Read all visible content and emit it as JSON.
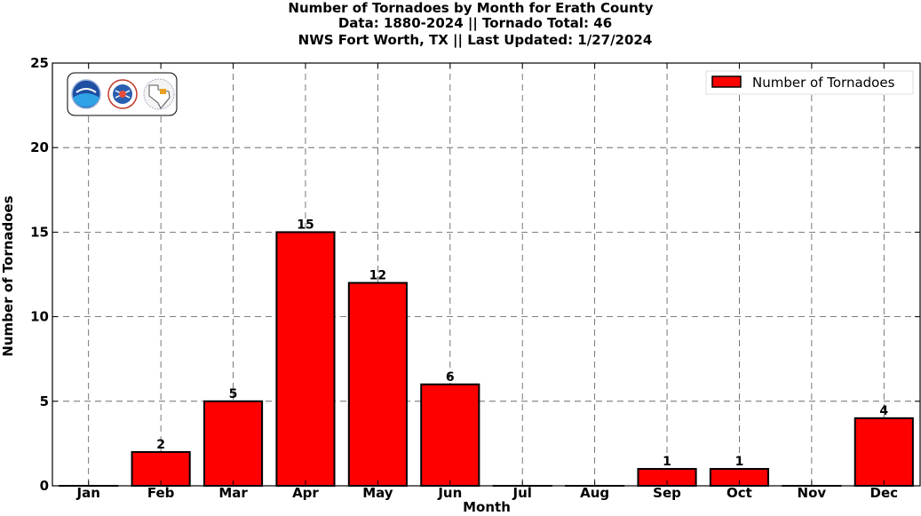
{
  "chart_data": {
    "type": "bar",
    "title_lines": [
      "Number of Tornadoes by Month for Erath County",
      "Data: 1880-2024 || Tornado Total: 46",
      "NWS Fort Worth, TX || Last Updated: 1/27/2024"
    ],
    "xlabel": "Month",
    "ylabel": "Number of Tornadoes",
    "categories": [
      "Jan",
      "Feb",
      "Mar",
      "Apr",
      "May",
      "Jun",
      "Jul",
      "Aug",
      "Sep",
      "Oct",
      "Nov",
      "Dec"
    ],
    "series": [
      {
        "name": "Number of Tornadoes",
        "values": [
          0,
          2,
          5,
          15,
          12,
          6,
          0,
          0,
          1,
          1,
          0,
          4
        ]
      }
    ],
    "data_labels": [
      "",
      "2",
      "5",
      "15",
      "12",
      "6",
      "",
      "",
      "1",
      "1",
      "",
      "4"
    ],
    "ylim": [
      0,
      25
    ],
    "yticks": [
      0,
      5,
      10,
      15,
      20,
      25
    ],
    "grid": true,
    "legend_position": "top-right",
    "bar_color": "#ff0000",
    "logos": [
      "noaa-logo",
      "nws-logo",
      "texas-nws-logo"
    ]
  }
}
